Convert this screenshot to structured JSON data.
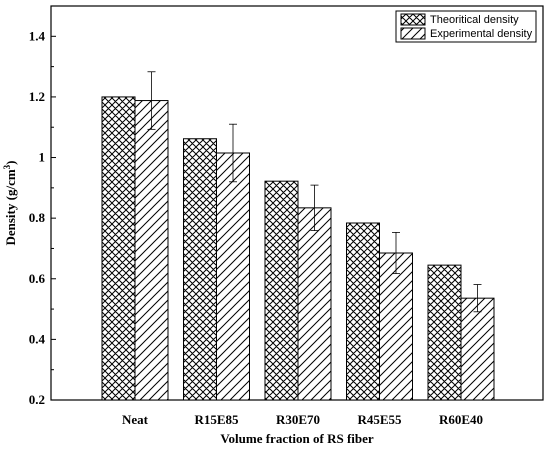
{
  "chart_data": {
    "type": "bar",
    "title": "",
    "xlabel": "Volume fraction of RS fiber",
    "ylabel_main": "Density (g/cm",
    "ylabel_sup": "3",
    "ylabel_close": ")",
    "ylim": [
      0.2,
      1.5
    ],
    "yticks": [
      "0.2",
      "0.4",
      "0.6",
      "0.8",
      "1",
      "1.2",
      "1.4"
    ],
    "ytick_values": [
      0.2,
      0.4,
      0.6,
      0.8,
      1.0,
      1.2,
      1.4
    ],
    "categories": [
      "Neat",
      "R15E85",
      "R30E70",
      "R45E55",
      "R60E40"
    ],
    "series": [
      {
        "name": "Theoritical density",
        "pattern": "crosshatch",
        "values": [
          1.2,
          1.062,
          0.922,
          0.784,
          0.645
        ],
        "errors": null
      },
      {
        "name": "Experimental density",
        "pattern": "diagonal",
        "values": [
          1.188,
          1.015,
          0.834,
          0.685,
          0.536
        ],
        "errors": [
          0.095,
          0.095,
          0.075,
          0.068,
          0.045
        ]
      }
    ],
    "legend_position": "top-right",
    "grid": false
  }
}
